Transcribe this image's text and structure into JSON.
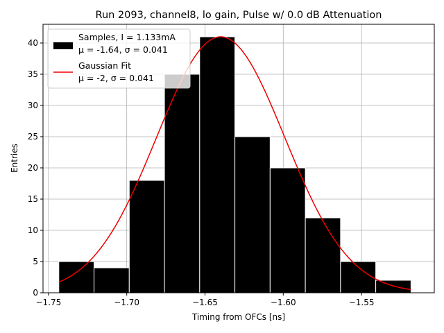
{
  "chart_data": {
    "type": "bar",
    "title": "Run 2093, channel8, lo gain, Pulse w/ 0.0 dB Attenuation",
    "xlabel": "Timing from OFCs [ns]",
    "ylabel": "Entries",
    "xlim": [
      -1.7535,
      -1.5035
    ],
    "ylim": [
      0,
      43
    ],
    "xticks": [
      -1.75,
      -1.7,
      -1.65,
      -1.6,
      -1.55
    ],
    "xtick_labels": [
      "−1.75",
      "−1.70",
      "−1.65",
      "−1.60",
      "−1.55"
    ],
    "yticks": [
      0,
      5,
      10,
      15,
      20,
      25,
      30,
      35,
      40
    ],
    "ytick_labels": [
      "0",
      "5",
      "10",
      "15",
      "20",
      "25",
      "30",
      "35",
      "40"
    ],
    "grid": true,
    "legend_position": "top-left",
    "bins": {
      "edges": [
        -1.7434,
        -1.7209,
        -1.6984,
        -1.6759,
        -1.6534,
        -1.6309,
        -1.6084,
        -1.5859,
        -1.5634,
        -1.5409,
        -1.5184
      ],
      "values": [
        5,
        4,
        18,
        35,
        41,
        25,
        20,
        12,
        5,
        2
      ],
      "color": "#000000",
      "edge_color": "#ffffff"
    },
    "fit": {
      "mu": -1.64,
      "sigma": 0.041,
      "amplitude": 41,
      "x_range": [
        -1.7434,
        -1.5184
      ],
      "color": "#ee0000"
    },
    "series": [
      {
        "name": "Samples, I = 1.133mA",
        "name_line2": "μ = -1.64, σ = 0.041",
        "color": "#000000"
      },
      {
        "name": "Gaussian Fit",
        "name_line2": "μ = -2, σ = 0.041",
        "color": "#ee0000"
      }
    ]
  }
}
